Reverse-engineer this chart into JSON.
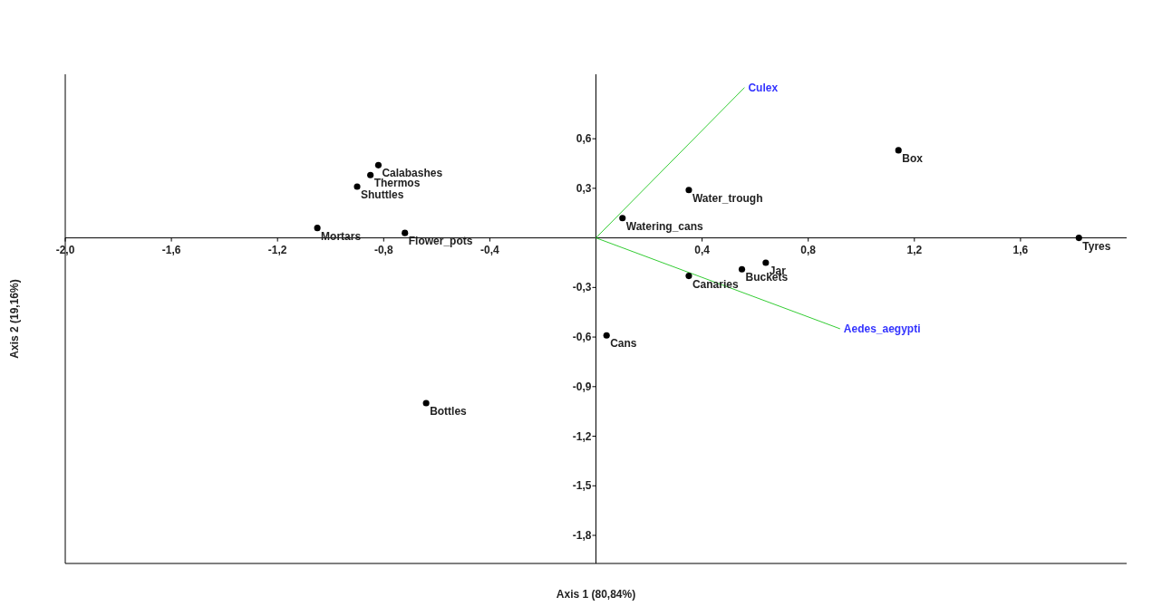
{
  "chart_data": {
    "type": "scatter",
    "xlabel": "Axis 1 (80,84%)",
    "ylabel": "Axis 2 (19,16%)",
    "xlim": [
      -2.0,
      2.0
    ],
    "ylim": [
      -1.97,
      0.99
    ],
    "xticks": [
      {
        "value": -2.0,
        "label": "-2,0"
      },
      {
        "value": -1.6,
        "label": "-1,6"
      },
      {
        "value": -1.2,
        "label": "-1,2"
      },
      {
        "value": -0.8,
        "label": "-0,8"
      },
      {
        "value": -0.4,
        "label": "-0,4"
      },
      {
        "value": 0.4,
        "label": "0,4"
      },
      {
        "value": 0.8,
        "label": "0,8"
      },
      {
        "value": 1.2,
        "label": "1,2"
      },
      {
        "value": 1.6,
        "label": "1,6"
      }
    ],
    "yticks": [
      {
        "value": 0.6,
        "label": "0,6"
      },
      {
        "value": 0.3,
        "label": "0,3"
      },
      {
        "value": -0.3,
        "label": "-0,3"
      },
      {
        "value": -0.6,
        "label": "-0,6"
      },
      {
        "value": -0.9,
        "label": "-0,9"
      },
      {
        "value": -1.2,
        "label": "-1,2"
      },
      {
        "value": -1.5,
        "label": "-1,5"
      },
      {
        "value": -1.8,
        "label": "-1,8"
      }
    ],
    "marker": "circle",
    "series": [
      {
        "color": "#000000",
        "x": [
          -0.82,
          -0.85,
          -0.9,
          -1.05,
          -0.72,
          -0.64,
          0.04,
          0.35,
          0.55,
          0.64,
          0.35,
          0.1,
          1.14,
          1.82
        ],
        "values": [
          0.44,
          0.38,
          0.31,
          0.06,
          0.03,
          -1.0,
          -0.59,
          -0.23,
          -0.19,
          -0.15,
          0.29,
          0.12,
          0.53,
          0.0
        ]
      },
      {
        "type": "line",
        "marker": "none",
        "name": "Culex",
        "color": "#33cc33",
        "x": [
          0,
          0.56
        ],
        "values": [
          0,
          0.91
        ]
      },
      {
        "type": "line",
        "marker": "none",
        "name": "Aedes_aegypti",
        "color": "#33cc33",
        "x": [
          0,
          0.92
        ],
        "values": [
          0,
          -0.55
        ]
      }
    ],
    "annotations": [
      {
        "text": "Calabashes",
        "x": -0.82,
        "y": 0.44
      },
      {
        "text": "Thermos",
        "x": -0.85,
        "y": 0.38
      },
      {
        "text": "Shuttles",
        "x": -0.9,
        "y": 0.31
      },
      {
        "text": "Mortars",
        "x": -1.05,
        "y": 0.06
      },
      {
        "text": "Flower_pots",
        "x": -0.72,
        "y": 0.03
      },
      {
        "text": "Bottles",
        "x": -0.64,
        "y": -1.0
      },
      {
        "text": "Cans",
        "x": 0.04,
        "y": -0.59
      },
      {
        "text": "Canaries",
        "x": 0.35,
        "y": -0.23
      },
      {
        "text": "Buckets",
        "x": 0.55,
        "y": -0.19
      },
      {
        "text": "Jar",
        "x": 0.64,
        "y": -0.15
      },
      {
        "text": "Water_trough",
        "x": 0.35,
        "y": 0.29
      },
      {
        "text": "Watering_cans",
        "x": 0.1,
        "y": 0.12
      },
      {
        "text": "Box",
        "x": 1.14,
        "y": 0.53
      },
      {
        "text": "Tyres",
        "x": 1.82,
        "y": 0.0
      }
    ]
  }
}
